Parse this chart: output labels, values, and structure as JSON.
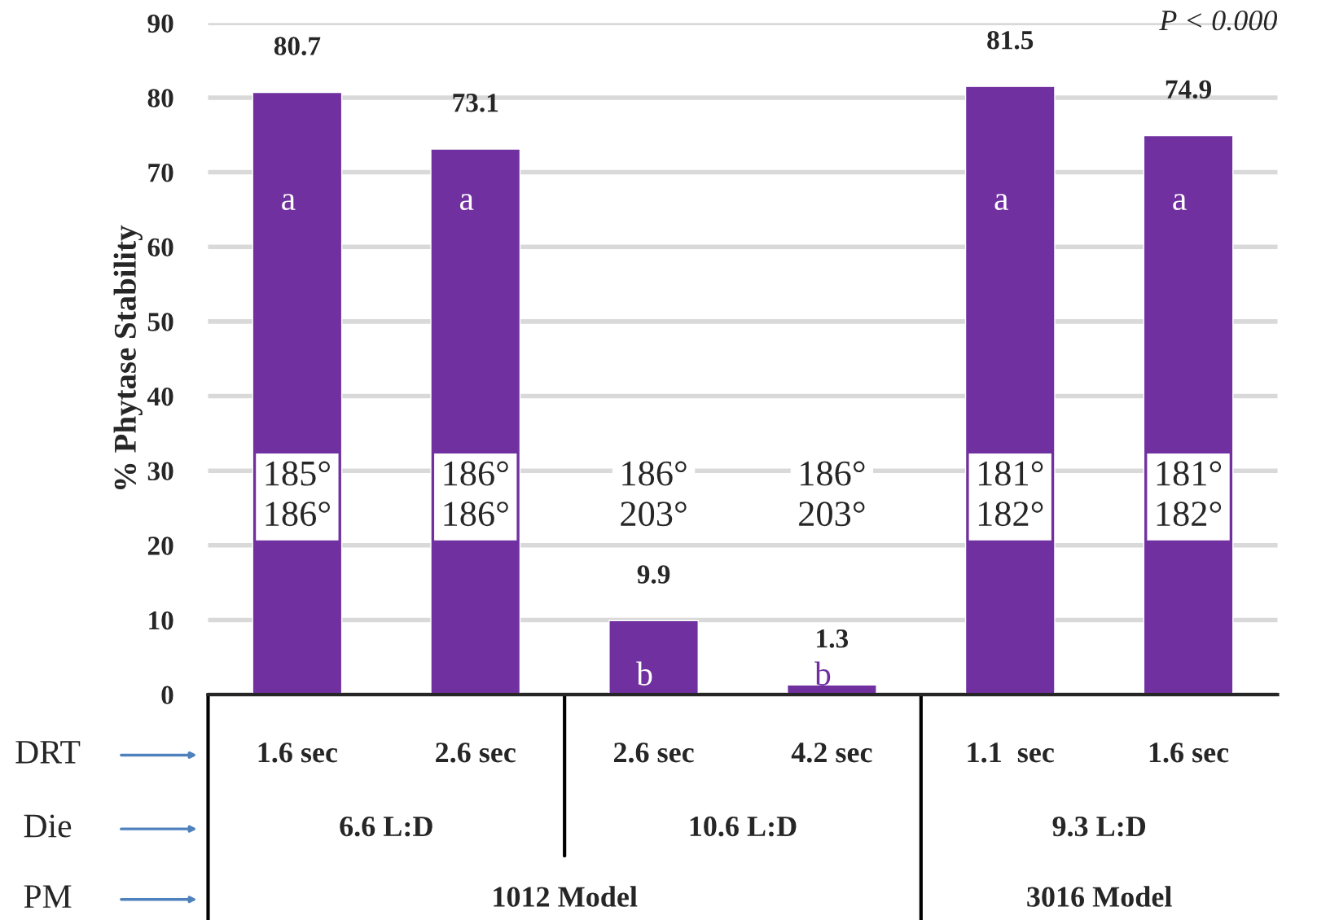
{
  "chart_data": {
    "type": "bar",
    "ylabel": "% Phytase Stability",
    "categories": [
      "1.6 sec",
      "2.6 sec",
      "2.6 sec",
      "4.2 sec",
      "1.1  sec",
      "1.6 sec"
    ],
    "values": [
      80.7,
      73.1,
      9.9,
      1.3,
      81.5,
      74.9
    ],
    "color": "#7030a0",
    "data_labels": true,
    "ylim": [
      0,
      90
    ],
    "yticks": [
      0,
      10,
      20,
      30,
      40,
      50,
      60,
      70,
      80,
      90
    ],
    "grid": "y",
    "annotations": [
      "a",
      "a",
      "b",
      "b",
      "a",
      "a",
      "185°\n186°",
      "186°\n186°",
      "186°\n203°",
      "186°\n203°",
      "181°\n182°",
      "181°\n182°",
      "DRT",
      "Die",
      "PM",
      "6.6 L:D",
      "10.6 L:D",
      "9.3 L:D",
      "1012 Model",
      "3016 Model",
      "P < 0.000"
    ]
  }
}
